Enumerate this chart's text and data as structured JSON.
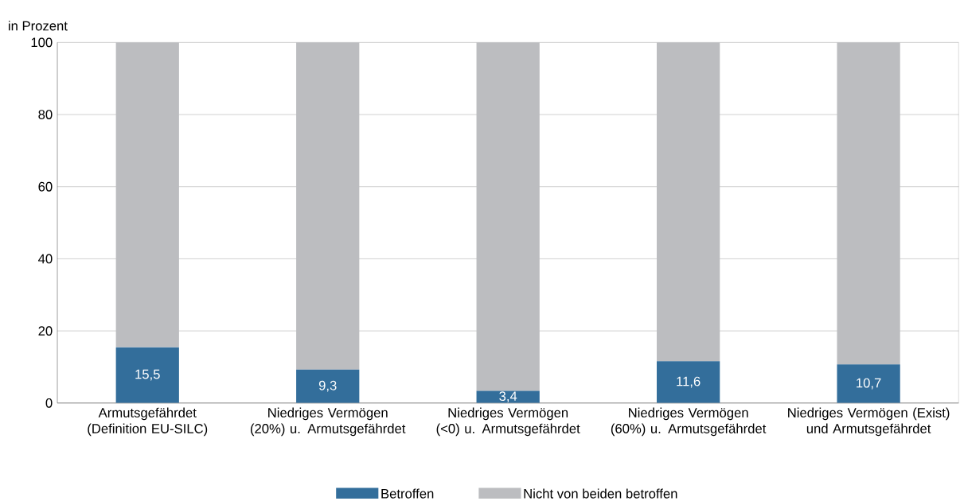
{
  "chart_data": {
    "type": "bar",
    "stacked": true,
    "ylabel": "in Prozent",
    "categories": [
      "Armutsgefährdet (Definition EU-SILC)",
      "Niedriges Vermögen (20%) u. Armutsgefährdet",
      "Niedriges Vermögen (<0) u. Armutsgefährdet",
      "Niedriges Vermögen (60%) u. Armutsgefährdet",
      "Niedriges Vermögen (Exist) und Armutsgefährdet"
    ],
    "series": [
      {
        "name": "Betroffen",
        "color": "#336e9b",
        "values": [
          15.5,
          9.3,
          3.4,
          11.6,
          10.7
        ],
        "value_labels": [
          "15,5",
          "9,3",
          "3,4",
          "11,6",
          "10,7"
        ]
      },
      {
        "name": "Nicht von beiden betroffen",
        "color": "#bcbdc0",
        "values": [
          84.5,
          90.7,
          96.6,
          88.4,
          89.3
        ]
      }
    ],
    "ylim": [
      0,
      100
    ],
    "yticks": [
      0,
      20,
      40,
      60,
      80,
      100
    ],
    "grid": "y",
    "legend": "bottom"
  }
}
